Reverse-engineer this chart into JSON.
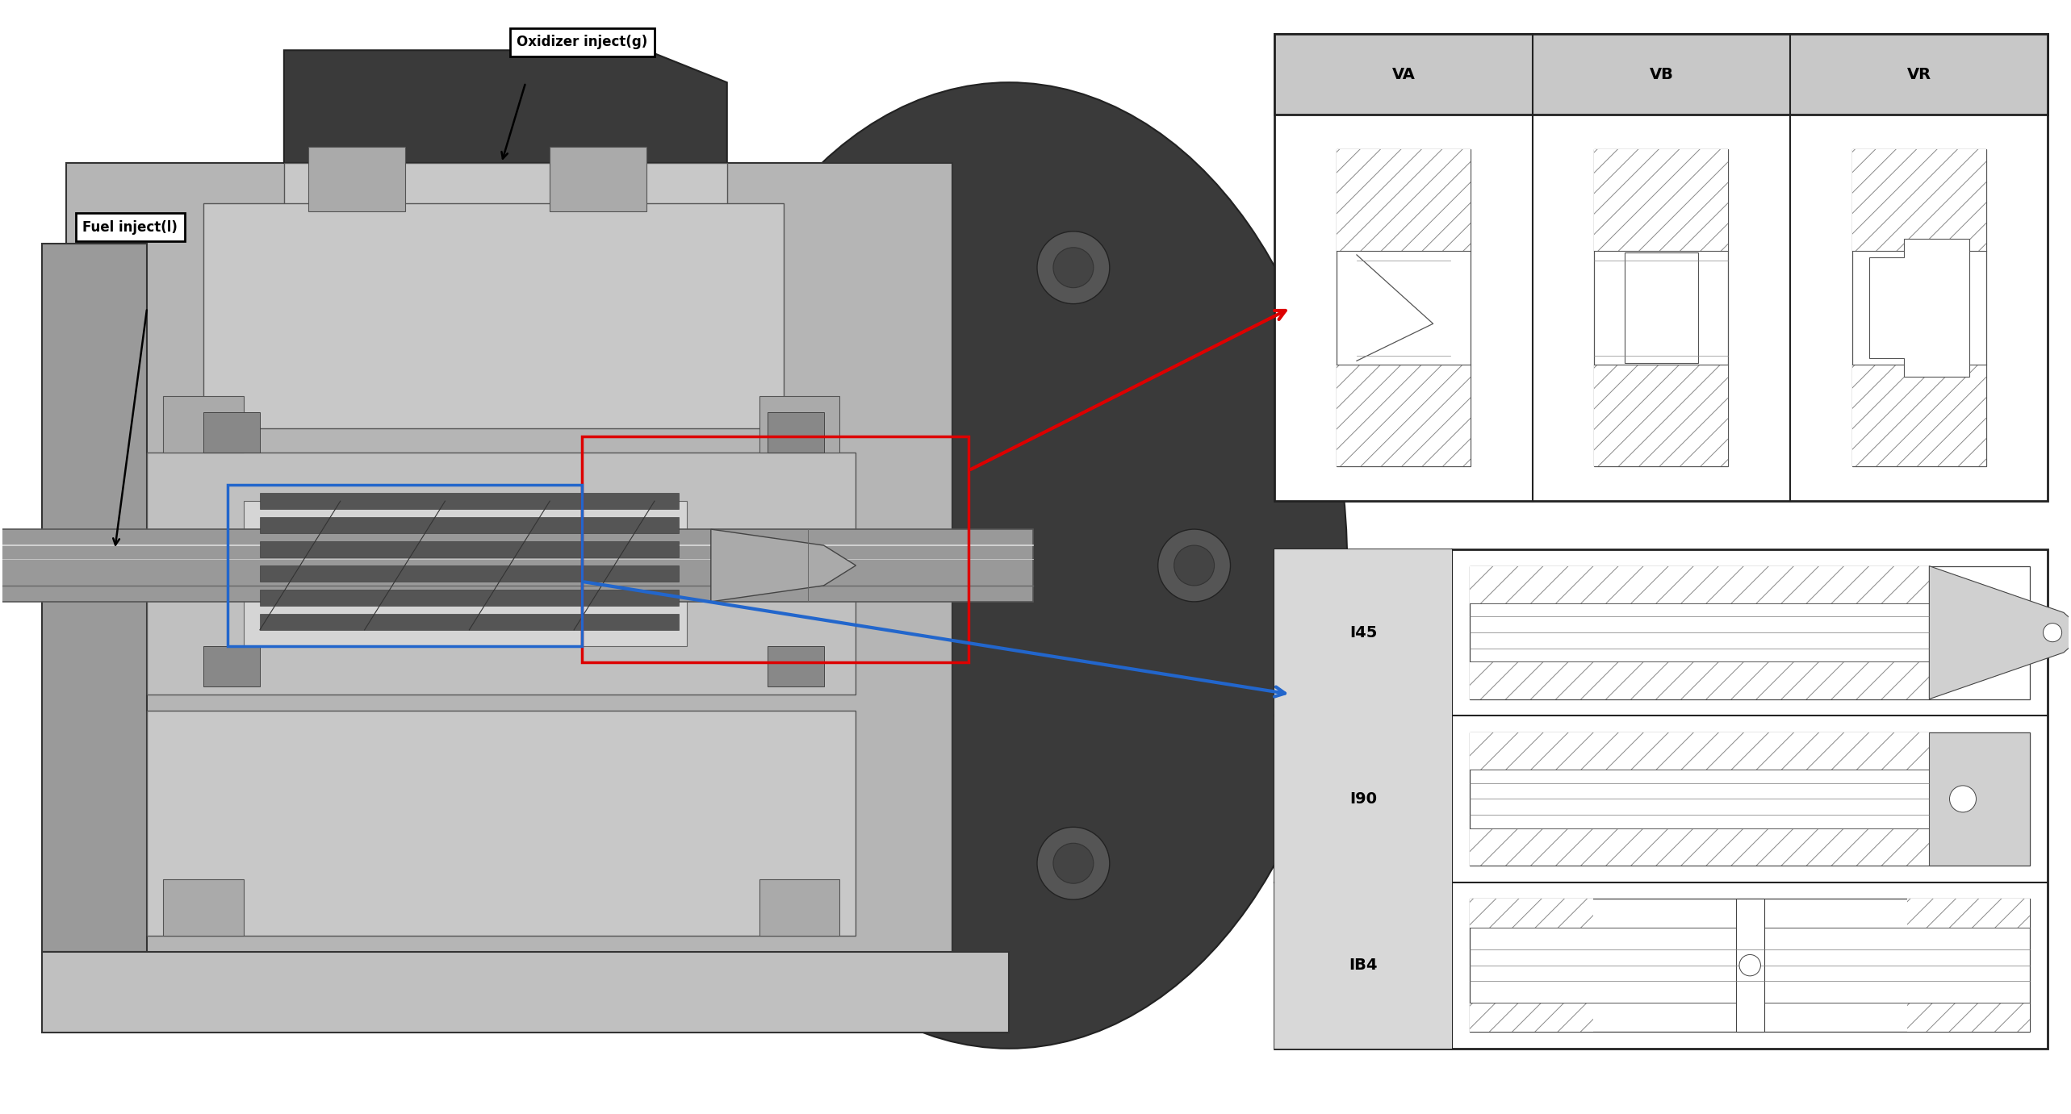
{
  "fig_width": 25.66,
  "fig_height": 13.81,
  "bg_color": "#ffffff",
  "label_oxidizer": "Oxidizer inject(g)",
  "label_fuel": "Fuel inject(l)",
  "header_color": "#c8c8c8",
  "label_bg": "#d8d8d8",
  "VA_label": "VA",
  "VB_label": "VB",
  "VR_label": "VR",
  "I45_label": "I45",
  "I90_label": "I90",
  "IB4_label": "IB4",
  "red_arrow_color": "#dd0000",
  "blue_arrow_color": "#2266cc",
  "box_red_color": "#dd0000",
  "box_blue_color": "#2266cc",
  "dark_gray": "#3a3a3a",
  "mid_gray": "#888888",
  "light_gray": "#cccccc",
  "face_gray": "#b8b8b8",
  "recess_gray": "#d8d8d8"
}
